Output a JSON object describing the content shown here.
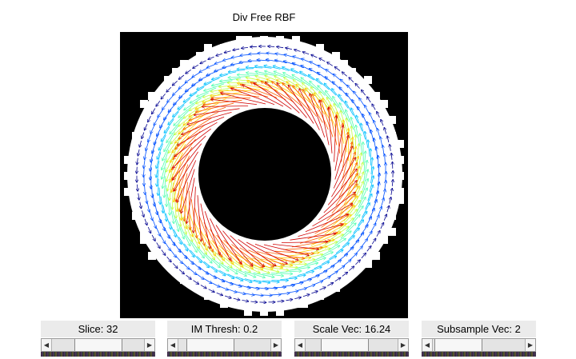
{
  "figure": {
    "title": "Div Free RBF"
  },
  "colors": {
    "plot_background": "#000000",
    "colormap": [
      "#00008f",
      "#0050ff",
      "#00c0ff",
      "#50ffb0",
      "#c0ff40",
      "#ffd000",
      "#ff6000",
      "#d00000",
      "#800000"
    ]
  },
  "controls": [
    {
      "label": "Slice: 32",
      "value_fraction": 0.5
    },
    {
      "label": "IM Thresh: 0.2",
      "value_fraction": 0.2
    },
    {
      "label": "Scale Vec: 16.24",
      "value_fraction": 0.35
    },
    {
      "label": "Subsample Vec: 2",
      "value_fraction": 0.05
    }
  ]
}
